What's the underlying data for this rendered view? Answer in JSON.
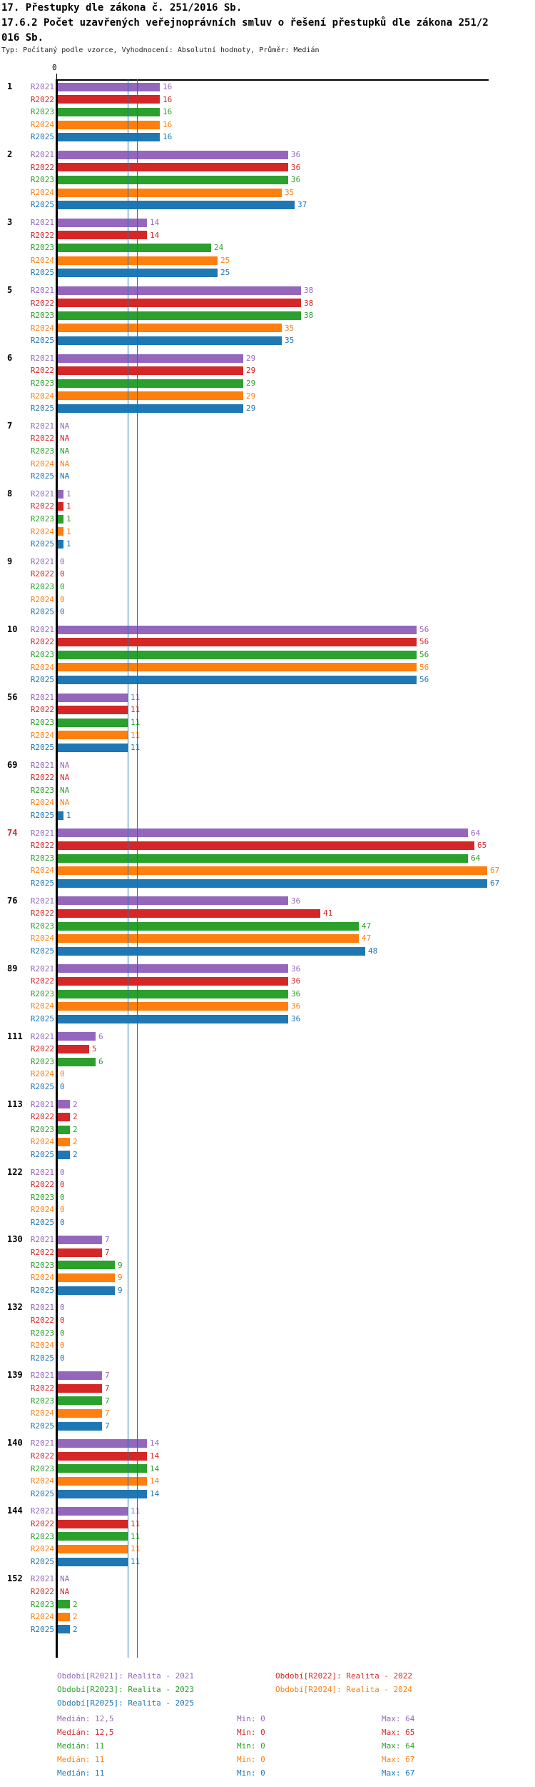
{
  "header": {
    "title": "17. Přestupky dle zákona č. 251/2016 Sb.",
    "subtitle_line1": "17.6.2 Počet uzavřených veřejnoprávních smluv o řešení přestupků dle zákona 251/2",
    "subtitle_line2": "016 Sb.",
    "meta": "Typ: Počítaný podle vzorce, Vyhodnocení: Absolutní hodnoty, Průměr: Medián"
  },
  "axis": {
    "zero_label": "0"
  },
  "chart_data": {
    "type": "bar",
    "orientation": "horizontal",
    "x_axis_position": "top",
    "xlim": [
      0,
      67
    ],
    "series_names": [
      "R2021",
      "R2022",
      "R2023",
      "R2024",
      "R2025"
    ],
    "series_colors": [
      "#9467bd",
      "#d62728",
      "#2ca02c",
      "#ff7f0e",
      "#1f77b4"
    ],
    "na_text": "NA",
    "label_highlight_color": "#d62728",
    "groups": [
      {
        "label": "1",
        "highlight": false,
        "values": [
          16,
          16,
          16,
          16,
          16
        ]
      },
      {
        "label": "2",
        "highlight": false,
        "values": [
          36,
          36,
          36,
          35,
          37
        ]
      },
      {
        "label": "3",
        "highlight": false,
        "values": [
          14,
          14,
          24,
          25,
          25
        ]
      },
      {
        "label": "5",
        "highlight": false,
        "values": [
          38,
          38,
          38,
          35,
          35
        ]
      },
      {
        "label": "6",
        "highlight": false,
        "values": [
          29,
          29,
          29,
          29,
          29
        ]
      },
      {
        "label": "7",
        "highlight": false,
        "values": [
          "NA",
          "NA",
          "NA",
          "NA",
          "NA"
        ]
      },
      {
        "label": "8",
        "highlight": false,
        "values": [
          1,
          1,
          1,
          1,
          1
        ]
      },
      {
        "label": "9",
        "highlight": false,
        "values": [
          0,
          0,
          0,
          0,
          0
        ]
      },
      {
        "label": "10",
        "highlight": false,
        "values": [
          56,
          56,
          56,
          56,
          56
        ]
      },
      {
        "label": "56",
        "highlight": false,
        "values": [
          11,
          11,
          11,
          11,
          11
        ]
      },
      {
        "label": "69",
        "highlight": false,
        "values": [
          "NA",
          "NA",
          "NA",
          "NA",
          1
        ]
      },
      {
        "label": "74",
        "highlight": true,
        "values": [
          64,
          65,
          64,
          67,
          67
        ]
      },
      {
        "label": "76",
        "highlight": false,
        "values": [
          36,
          41,
          47,
          47,
          48
        ]
      },
      {
        "label": "89",
        "highlight": false,
        "values": [
          36,
          36,
          36,
          36,
          36
        ]
      },
      {
        "label": "111",
        "highlight": false,
        "values": [
          6,
          5,
          6,
          0,
          0
        ]
      },
      {
        "label": "113",
        "highlight": false,
        "values": [
          2,
          2,
          2,
          2,
          2
        ]
      },
      {
        "label": "122",
        "highlight": false,
        "values": [
          0,
          0,
          0,
          0,
          0
        ]
      },
      {
        "label": "130",
        "highlight": false,
        "values": [
          7,
          7,
          9,
          9,
          9
        ]
      },
      {
        "label": "132",
        "highlight": false,
        "values": [
          0,
          0,
          0,
          0,
          0
        ]
      },
      {
        "label": "139",
        "highlight": false,
        "values": [
          7,
          7,
          7,
          7,
          7
        ]
      },
      {
        "label": "140",
        "highlight": false,
        "values": [
          14,
          14,
          14,
          14,
          14
        ]
      },
      {
        "label": "144",
        "highlight": false,
        "values": [
          11,
          11,
          11,
          11,
          11
        ]
      },
      {
        "label": "152",
        "highlight": false,
        "values": [
          "NA",
          "NA",
          2,
          2,
          2
        ]
      }
    ],
    "reference_lines": [
      {
        "name": "median-2025",
        "value": 11,
        "color": "#1f77b4"
      },
      {
        "name": "median-2022",
        "value": 12.5,
        "color": "#d62728"
      }
    ]
  },
  "legend": {
    "items": [
      {
        "label": "Období[R2021]: Realita - 2021",
        "color": "#9467bd"
      },
      {
        "label": "Období[R2022]: Realita - 2022",
        "color": "#d62728"
      },
      {
        "label": "Období[R2023]: Realita - 2023",
        "color": "#2ca02c"
      },
      {
        "label": "Období[R2024]: Realita - 2024",
        "color": "#ff7f0e"
      },
      {
        "label": "Období[R2025]: Realita - 2025",
        "color": "#1f77b4"
      }
    ]
  },
  "stats": {
    "rows": [
      {
        "median": "Medián: 12,5",
        "min": "Min: 0",
        "max": "Max: 64",
        "color": "#9467bd"
      },
      {
        "median": "Medián: 12,5",
        "min": "Min: 0",
        "max": "Max: 65",
        "color": "#d62728"
      },
      {
        "median": "Medián: 11",
        "min": "Min: 0",
        "max": "Max: 64",
        "color": "#2ca02c"
      },
      {
        "median": "Medián: 11",
        "min": "Min: 0",
        "max": "Max: 67",
        "color": "#ff7f0e"
      },
      {
        "median": "Medián: 11",
        "min": "Min: 0",
        "max": "Max: 67",
        "color": "#1f77b4"
      }
    ]
  }
}
